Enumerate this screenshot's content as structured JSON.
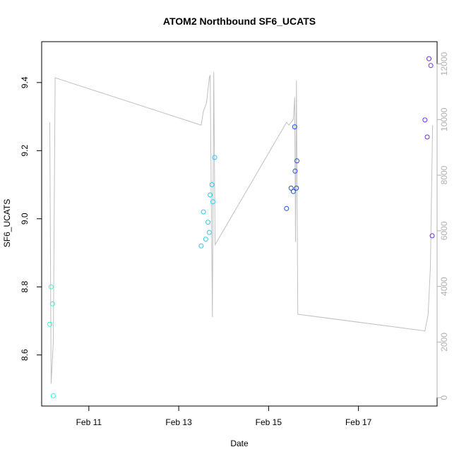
{
  "chart_data": {
    "type": "scatter",
    "title": "ATOM2 Northbound SF6_UCATS",
    "xlabel": "Date",
    "ylabel": "SF6_UCATS",
    "x_ticks": [
      {
        "label": "Feb 11",
        "value": 11
      },
      {
        "label": "Feb 13",
        "value": 13
      },
      {
        "label": "Feb 15",
        "value": 15
      },
      {
        "label": "Feb 17",
        "value": 17
      }
    ],
    "xlim": [
      9.95,
      18.75
    ],
    "ylim": [
      8.45,
      9.52
    ],
    "y_ticks": [
      8.6,
      8.8,
      9.0,
      9.2,
      9.4
    ],
    "y_right_lim": [
      -300,
      12800
    ],
    "y_right_ticks": [
      0,
      2000,
      4000,
      6000,
      8000,
      10000,
      12000
    ],
    "series": [
      {
        "color": "#3ef2c8",
        "points": [
          [
            10.13,
            8.69
          ],
          [
            10.16,
            8.8
          ],
          [
            10.19,
            8.75
          ],
          [
            10.21,
            8.48
          ]
        ]
      },
      {
        "color": "#2ec8f0",
        "points": [
          [
            13.5,
            8.92
          ],
          [
            13.55,
            9.02
          ],
          [
            13.6,
            8.94
          ],
          [
            13.65,
            8.99
          ],
          [
            13.68,
            8.96
          ],
          [
            13.7,
            9.07
          ],
          [
            13.74,
            9.1
          ],
          [
            13.76,
            9.05
          ],
          [
            13.8,
            9.18
          ]
        ]
      },
      {
        "color": "#1f4fd8",
        "points": [
          [
            15.4,
            9.03
          ],
          [
            15.5,
            9.09
          ],
          [
            15.55,
            9.08
          ],
          [
            15.58,
            9.27
          ],
          [
            15.59,
            9.14
          ],
          [
            15.62,
            9.09
          ],
          [
            15.63,
            9.17
          ]
        ]
      },
      {
        "color": "#7030e0",
        "points": [
          [
            18.48,
            9.29
          ],
          [
            18.53,
            9.24
          ],
          [
            18.57,
            9.47
          ],
          [
            18.61,
            9.45
          ],
          [
            18.64,
            8.95
          ]
        ]
      }
    ],
    "altitude_line": {
      "color": "#c0c0c0",
      "points": [
        [
          10.13,
          9900
        ],
        [
          10.16,
          500
        ],
        [
          10.21,
          2000
        ],
        [
          10.25,
          11500
        ],
        [
          13.5,
          9800
        ],
        [
          13.55,
          10300
        ],
        [
          13.62,
          10600
        ],
        [
          13.68,
          11500
        ],
        [
          13.7,
          11600
        ],
        [
          13.75,
          2900
        ],
        [
          13.78,
          11700
        ],
        [
          13.81,
          5500
        ],
        [
          15.4,
          9900
        ],
        [
          15.45,
          9800
        ],
        [
          15.55,
          10000
        ],
        [
          15.58,
          10800
        ],
        [
          15.6,
          5600
        ],
        [
          15.62,
          11400
        ],
        [
          15.65,
          3000
        ],
        [
          18.48,
          2400
        ],
        [
          18.55,
          3000
        ],
        [
          18.6,
          4700
        ],
        [
          18.65,
          9800
        ]
      ]
    }
  }
}
